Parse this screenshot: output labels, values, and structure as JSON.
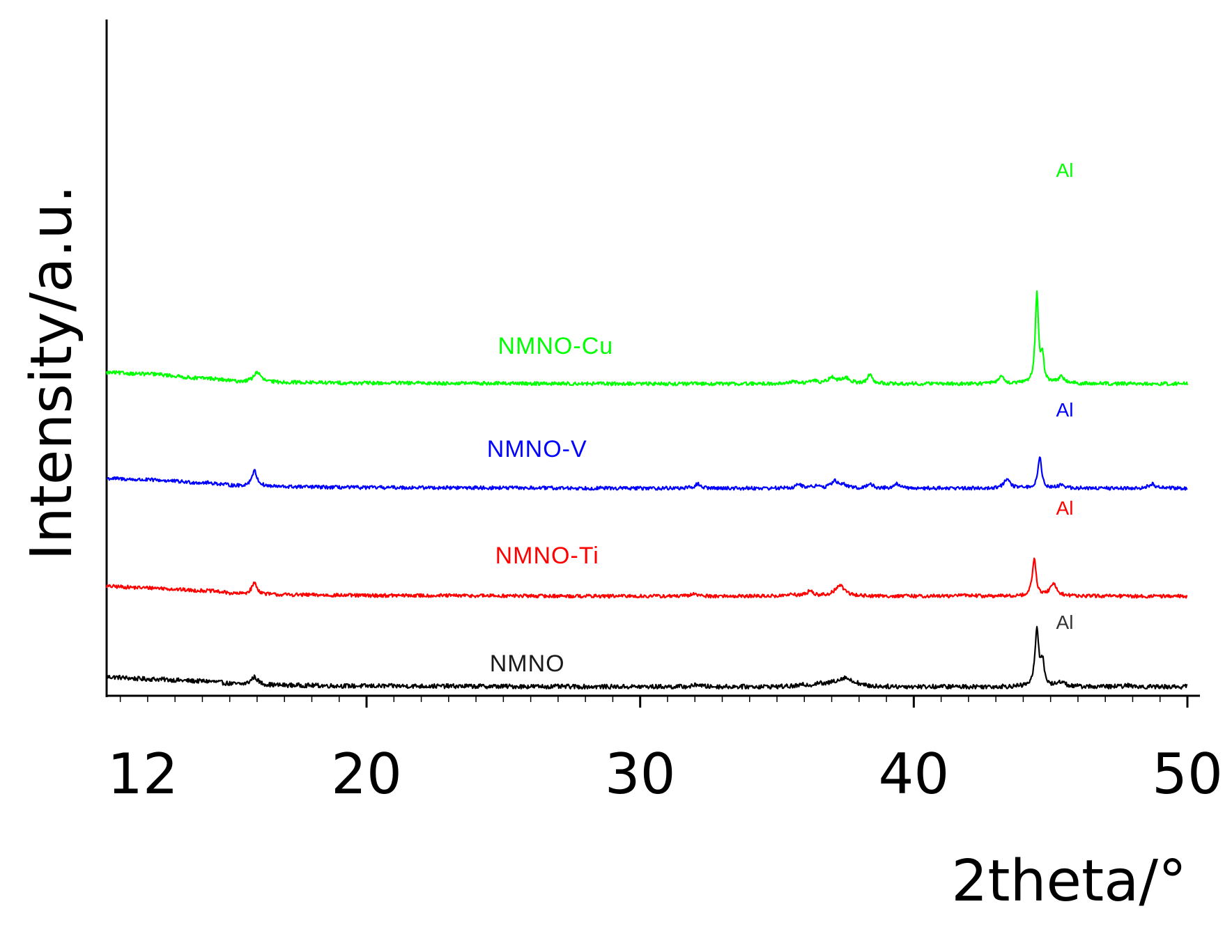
{
  "chart_data": {
    "type": "line",
    "title": "",
    "xlabel": "2theta/°",
    "ylabel": "Intensity/a.u.",
    "xlim": [
      10.5,
      50
    ],
    "x_ticks": [
      12,
      20,
      30,
      40,
      50
    ],
    "y_ticks_visible": false,
    "grid": false,
    "legend": "inline labels",
    "series": [
      {
        "name": "NMNO",
        "color": "#000000",
        "offset": 0,
        "baseline": 0,
        "noise": 1.0,
        "background": [
          [
            10.5,
            14
          ],
          [
            12,
            11
          ],
          [
            14,
            8
          ],
          [
            15.5,
            3
          ],
          [
            17,
            2
          ],
          [
            20,
            1
          ],
          [
            30,
            0
          ],
          [
            40,
            0
          ],
          [
            50,
            0
          ]
        ],
        "peaks": [
          [
            15.9,
            11,
            0.15
          ],
          [
            32.1,
            3.5,
            0.12
          ],
          [
            36.0,
            2,
            0.2
          ],
          [
            36.5,
            4,
            0.15
          ],
          [
            37.1,
            5,
            0.3
          ],
          [
            37.5,
            11,
            0.25
          ],
          [
            37.9,
            3,
            0.15
          ],
          [
            44.5,
            82,
            0.08
          ],
          [
            44.7,
            34,
            0.08
          ],
          [
            45.4,
            7,
            0.15
          ],
          [
            47.8,
            1.5,
            0.2
          ]
        ]
      },
      {
        "name": "NMNO-Ti",
        "color": "#ff0000",
        "offset": 130,
        "baseline": 0,
        "noise": 0.8,
        "background": [
          [
            10.5,
            14
          ],
          [
            12,
            12
          ],
          [
            14,
            8
          ],
          [
            15.5,
            3
          ],
          [
            17,
            2
          ],
          [
            20,
            1
          ],
          [
            30,
            0
          ],
          [
            40,
            0
          ],
          [
            50,
            0
          ]
        ],
        "peaks": [
          [
            15.9,
            16,
            0.12
          ],
          [
            32.0,
            4,
            0.12
          ],
          [
            35.5,
            2,
            0.2
          ],
          [
            36.2,
            7,
            0.14
          ],
          [
            37.3,
            15,
            0.22
          ],
          [
            41.9,
            2,
            0.2
          ],
          [
            44.4,
            54,
            0.08
          ],
          [
            45.1,
            17,
            0.15
          ]
        ]
      },
      {
        "name": "NMNO-V",
        "color": "#0000ff",
        "offset": 285,
        "baseline": 0,
        "noise": 0.8,
        "background": [
          [
            10.5,
            14
          ],
          [
            12,
            12
          ],
          [
            14,
            8
          ],
          [
            15.5,
            3
          ],
          [
            17,
            2
          ],
          [
            20,
            1
          ],
          [
            30,
            0
          ],
          [
            40,
            0
          ],
          [
            50,
            0
          ]
        ],
        "peaks": [
          [
            15.9,
            22,
            0.12
          ],
          [
            32.1,
            6,
            0.12
          ],
          [
            35.8,
            5,
            0.14
          ],
          [
            36.4,
            3,
            0.15
          ],
          [
            37.1,
            10,
            0.14
          ],
          [
            37.4,
            5,
            0.14
          ],
          [
            38.4,
            6,
            0.12
          ],
          [
            39.4,
            6,
            0.12
          ],
          [
            43.4,
            12,
            0.14
          ],
          [
            44.6,
            45,
            0.08
          ],
          [
            45.4,
            4,
            0.15
          ],
          [
            48.7,
            6,
            0.15
          ]
        ]
      },
      {
        "name": "NMNO-Cu",
        "color": "#00ff00",
        "offset": 435,
        "baseline": 0,
        "noise": 0.8,
        "background": [
          [
            10.5,
            16
          ],
          [
            12,
            14
          ],
          [
            14,
            8
          ],
          [
            15.5,
            3
          ],
          [
            17,
            2
          ],
          [
            20,
            1
          ],
          [
            30,
            0
          ],
          [
            40,
            0
          ],
          [
            50,
            0
          ]
        ],
        "peaks": [
          [
            16.0,
            14,
            0.15
          ],
          [
            35.6,
            3,
            0.15
          ],
          [
            36.3,
            5,
            0.15
          ],
          [
            37.0,
            9,
            0.15
          ],
          [
            37.5,
            8,
            0.2
          ],
          [
            38.4,
            14,
            0.1
          ],
          [
            43.2,
            10,
            0.12
          ],
          [
            44.5,
            130,
            0.07
          ],
          [
            44.7,
            35,
            0.07
          ],
          [
            45.4,
            9,
            0.15
          ]
        ]
      }
    ],
    "annotations": [
      {
        "text": "NMNO",
        "color": "#1a1a1a",
        "x": 24.5,
        "y": 22
      },
      {
        "text": "NMNO-Ti",
        "color": "#ff0000",
        "x": 24.7,
        "y": 177
      },
      {
        "text": "NMNO-V",
        "color": "#0000ff",
        "x": 24.4,
        "y": 330
      },
      {
        "text": "NMNO-Cu",
        "color": "#00ff00",
        "x": 24.8,
        "y": 478
      },
      {
        "text": "Al",
        "color": "#333333",
        "x": 45.2,
        "y": 83
      },
      {
        "text": "Al",
        "color": "#ff0000",
        "x": 45.2,
        "y": 247
      },
      {
        "text": "Al",
        "color": "#0000ff",
        "x": 45.2,
        "y": 388
      },
      {
        "text": "Al",
        "color": "#00ff00",
        "x": 45.2,
        "y": 732
      }
    ]
  }
}
